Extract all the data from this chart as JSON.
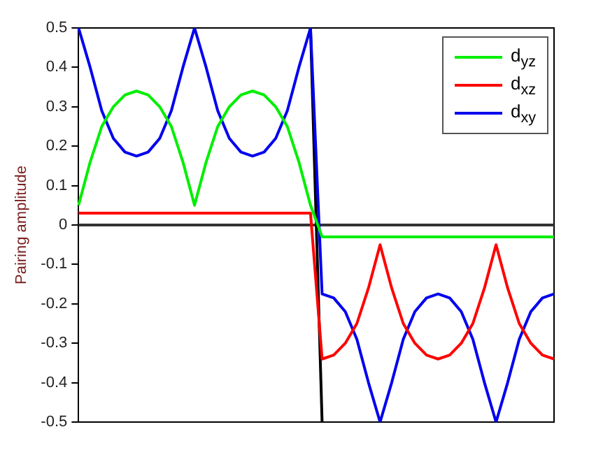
{
  "chart_data": {
    "type": "line",
    "ylabel": "Pairing amplitude",
    "categories": [
      null,
      null,
      null,
      null,
      null,
      null,
      null,
      null,
      null,
      null,
      null,
      null,
      null,
      null,
      null,
      null,
      null,
      null,
      null,
      null,
      null,
      null,
      null,
      null,
      null,
      null,
      null,
      null,
      null,
      null,
      null,
      null,
      null,
      null,
      null,
      null,
      null,
      null,
      null,
      null,
      null,
      null
    ],
    "ylim": [
      -0.5,
      0.5
    ],
    "yticks": [
      -0.5,
      -0.4,
      -0.3,
      -0.2,
      -0.1,
      0,
      0.1,
      0.2,
      0.3,
      0.4,
      0.5
    ],
    "tick_labels": "y",
    "grid": false,
    "legend": "top right",
    "marker": "none",
    "line_style": "solid",
    "ref_lines": [
      {
        "axis": "y",
        "value": 0,
        "color": "#333333"
      }
    ],
    "series": [
      {
        "name": "d$_{yz}$",
        "color": "#00ee00",
        "values": [
          0.05,
          0.16,
          0.25,
          0.3,
          0.33,
          0.34,
          0.33,
          0.3,
          0.25,
          0.16,
          0.05,
          0.16,
          0.25,
          0.3,
          0.33,
          0.34,
          0.33,
          0.3,
          0.25,
          0.16,
          0.05,
          -0.03,
          -0.03,
          -0.03,
          -0.03,
          -0.03,
          -0.03,
          -0.03,
          -0.03,
          -0.03,
          -0.03,
          -0.03,
          -0.03,
          -0.03,
          -0.03,
          -0.03,
          -0.03,
          -0.03,
          -0.03,
          -0.03,
          -0.03,
          -0.03
        ]
      },
      {
        "name": "d$_{xz}$",
        "color": "#ff0000",
        "values": [
          0.03,
          0.03,
          0.03,
          0.03,
          0.03,
          0.03,
          0.03,
          0.03,
          0.03,
          0.03,
          0.03,
          0.03,
          0.03,
          0.03,
          0.03,
          0.03,
          0.03,
          0.03,
          0.03,
          0.03,
          0.03,
          -0.34,
          -0.33,
          -0.3,
          -0.25,
          -0.16,
          -0.05,
          -0.16,
          -0.25,
          -0.3,
          -0.33,
          -0.34,
          -0.33,
          -0.3,
          -0.25,
          -0.16,
          -0.05,
          -0.16,
          -0.25,
          -0.3,
          -0.33,
          -0.34
        ]
      },
      {
        "name": "d$_{xy}$",
        "color": "#0000ee",
        "values": [
          0.5,
          0.4,
          0.29,
          0.22,
          0.185,
          0.175,
          0.185,
          0.22,
          0.29,
          0.4,
          0.5,
          0.4,
          0.29,
          0.22,
          0.185,
          0.175,
          0.185,
          0.22,
          0.29,
          0.4,
          0.5,
          -0.175,
          -0.185,
          -0.22,
          -0.29,
          -0.4,
          -0.5,
          -0.4,
          -0.29,
          -0.22,
          -0.185,
          -0.175,
          -0.185,
          -0.22,
          -0.29,
          -0.4,
          -0.5,
          -0.4,
          -0.29,
          -0.22,
          -0.185,
          -0.175
        ]
      },
      {
        "color": "#000000",
        "values": [
          null,
          null,
          null,
          null,
          null,
          null,
          null,
          null,
          null,
          null,
          null,
          null,
          null,
          null,
          null,
          null,
          null,
          null,
          null,
          null,
          0.5,
          -0.5,
          null,
          null,
          null,
          null,
          null,
          null,
          null,
          null,
          null,
          null,
          null,
          null,
          null,
          null,
          null,
          null,
          null,
          null,
          null,
          null
        ]
      }
    ]
  }
}
